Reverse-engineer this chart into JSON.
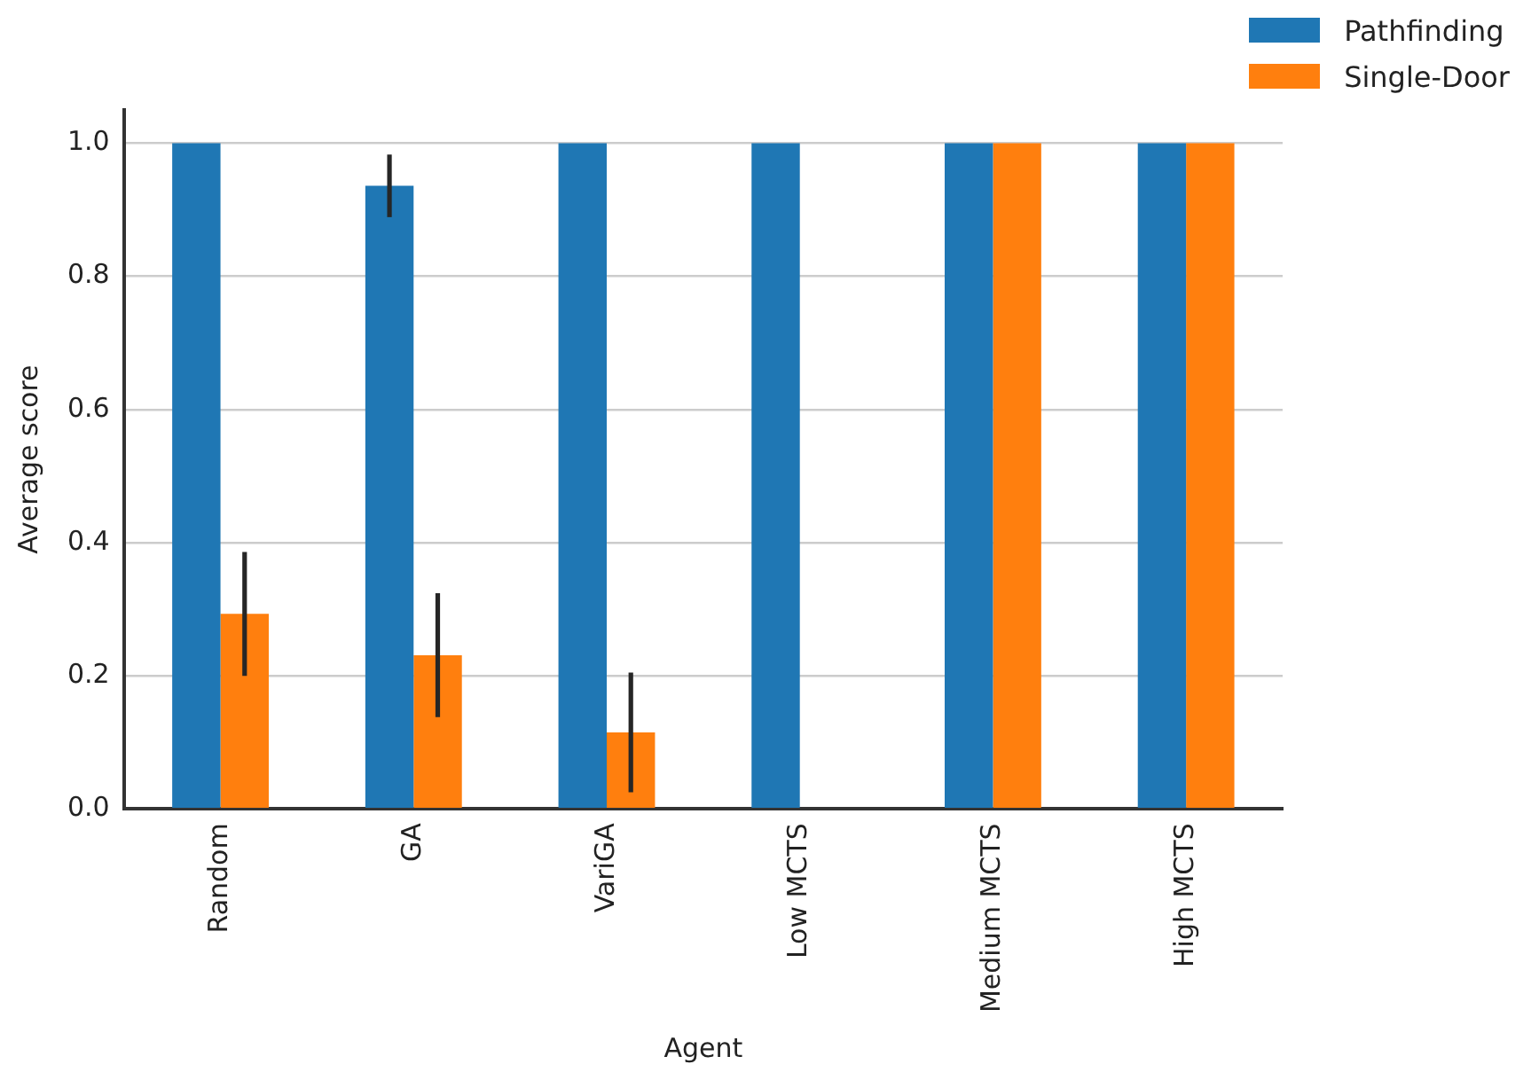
{
  "chart_data": {
    "type": "bar",
    "xlabel": "Agent",
    "ylabel": "Average score",
    "categories": [
      "Random",
      "GA",
      "VariGA",
      "Low MCTS",
      "Medium MCTS",
      "High MCTS"
    ],
    "series": [
      {
        "name": "Pathfinding",
        "color": "#1f77b4",
        "values": [
          1.0,
          0.936,
          1.0,
          1.0,
          1.0,
          1.0
        ],
        "errors": [
          null,
          0.047,
          null,
          null,
          null,
          null
        ]
      },
      {
        "name": "Single-Door",
        "color": "#ff7f0e",
        "values": [
          0.293,
          0.231,
          0.115,
          0,
          1.0,
          1.0
        ],
        "errors": [
          0.093,
          0.093,
          0.09,
          null,
          null,
          null
        ]
      }
    ],
    "ylim": [
      0,
      1.05
    ],
    "yticks": [
      {
        "value": 0,
        "label": "0.0"
      },
      {
        "value": 0.2,
        "label": "0.2"
      },
      {
        "value": 0.4,
        "label": "0.4"
      },
      {
        "value": 0.6,
        "label": "0.6"
      },
      {
        "value": 0.8,
        "label": "0.8"
      },
      {
        "value": 1,
        "label": "1.0"
      }
    ],
    "grid": "y",
    "legend": "top right"
  }
}
